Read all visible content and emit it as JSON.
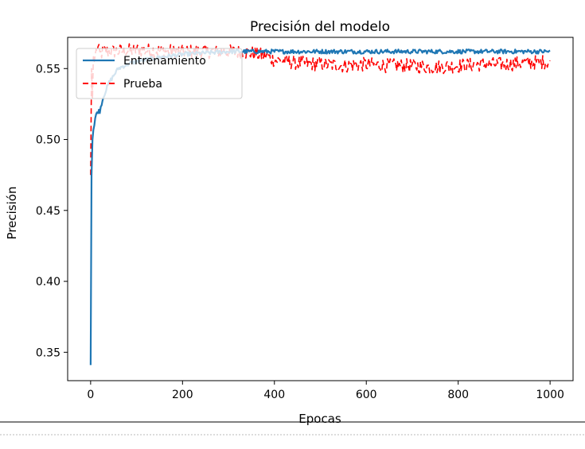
{
  "chart_data": {
    "type": "line",
    "title": "Precisión del modelo",
    "xlabel": "Epocas",
    "ylabel": "Precisión",
    "xlim": [
      -50,
      1050
    ],
    "ylim": [
      0.33,
      0.572
    ],
    "xticks": [
      0,
      200,
      400,
      600,
      800,
      1000
    ],
    "xtick_labels": [
      "0",
      "200",
      "400",
      "600",
      "800",
      "1000"
    ],
    "yticks": [
      0.35,
      0.4,
      0.45,
      0.5,
      0.55
    ],
    "ytick_labels": [
      "0.35",
      "0.40",
      "0.45",
      "0.50",
      "0.55"
    ],
    "grid": false,
    "legend_position": "upper-left",
    "series": [
      {
        "name": "Entrenamiento",
        "color": "#1f77b4",
        "style": "solid",
        "x": [
          0,
          1,
          2,
          3,
          5,
          8,
          10,
          15,
          20,
          25,
          30,
          40,
          50,
          60,
          80,
          100,
          150,
          200,
          250,
          300,
          350,
          400,
          500,
          600,
          700,
          800,
          900,
          1000
        ],
        "y": [
          0.341,
          0.43,
          0.475,
          0.495,
          0.505,
          0.51,
          0.515,
          0.52,
          0.52,
          0.527,
          0.532,
          0.54,
          0.545,
          0.55,
          0.553,
          0.555,
          0.558,
          0.56,
          0.561,
          0.562,
          0.562,
          0.562,
          0.562,
          0.562,
          0.562,
          0.562,
          0.562,
          0.562
        ],
        "noise": 0.0015
      },
      {
        "name": "Prueba",
        "color": "#ff0000",
        "style": "dashed",
        "x": [
          0,
          2,
          3,
          5,
          8,
          10,
          15,
          20,
          30,
          50,
          100,
          200,
          300,
          350,
          380,
          400,
          450,
          500,
          550,
          600,
          650,
          700,
          750,
          800,
          850,
          900,
          950,
          1000
        ],
        "y": [
          0.475,
          0.55,
          0.497,
          0.56,
          0.555,
          0.56,
          0.565,
          0.56,
          0.562,
          0.562,
          0.563,
          0.562,
          0.562,
          0.561,
          0.559,
          0.556,
          0.554,
          0.553,
          0.552,
          0.553,
          0.552,
          0.552,
          0.551,
          0.552,
          0.553,
          0.553,
          0.554,
          0.555
        ],
        "noise": 0.005
      }
    ]
  }
}
